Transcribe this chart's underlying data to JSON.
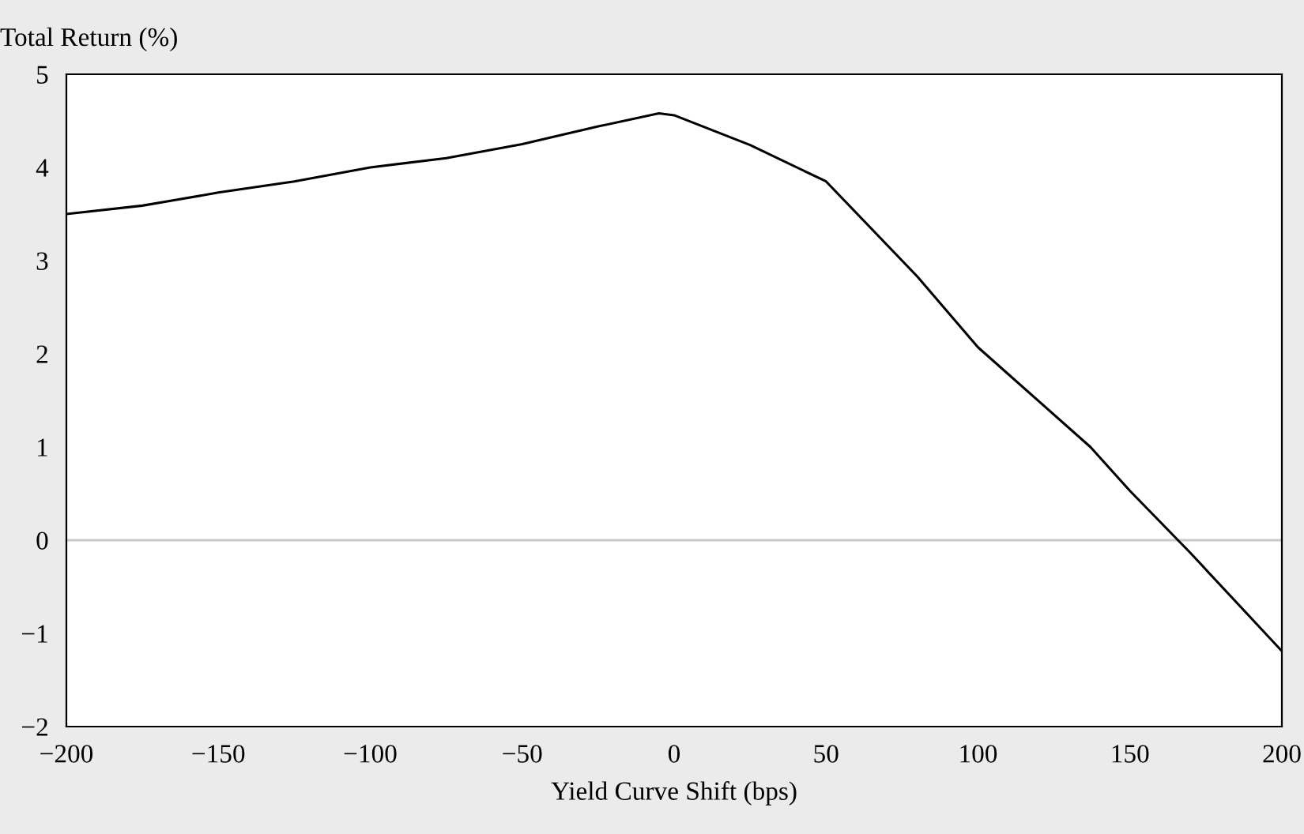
{
  "chart_data": {
    "type": "line",
    "xlabel": "Yield Curve Shift (bps)",
    "ylabel": "Total Return (%)",
    "x": [
      -200,
      -175,
      -150,
      -125,
      -100,
      -75,
      -50,
      -25,
      -5,
      0,
      25,
      50,
      80,
      100,
      137,
      150,
      170,
      200
    ],
    "series": [
      {
        "color": "#000000",
        "values": [
          3.5,
          3.59,
          3.73,
          3.85,
          4.0,
          4.1,
          4.25,
          4.44,
          4.58,
          4.56,
          4.24,
          3.85,
          2.83,
          2.07,
          1.0,
          0.53,
          -0.14,
          -1.19
        ]
      }
    ],
    "xlim": [
      -200,
      200
    ],
    "ylim": [
      -2,
      5
    ],
    "xticks": [
      {
        "value": -200,
        "label": "−200"
      },
      {
        "value": -150,
        "label": "−150"
      },
      {
        "value": -100,
        "label": "−100"
      },
      {
        "value": -50,
        "label": "−50"
      },
      0,
      50,
      100,
      150,
      200
    ],
    "yticks": [
      {
        "value": -2,
        "label": "−2"
      },
      {
        "value": -1,
        "label": "−1"
      },
      0,
      1,
      2,
      3,
      4,
      5
    ],
    "ref_lines": [
      {
        "axis": "y",
        "value": 0,
        "color": "#c8c8c8"
      }
    ],
    "grid": false,
    "legend": false,
    "marker": "none",
    "line_style": "solid"
  }
}
